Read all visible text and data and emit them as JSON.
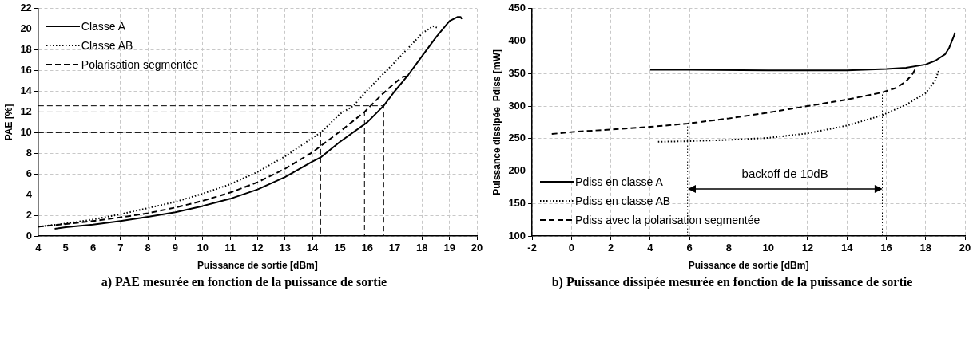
{
  "chart_data": [
    {
      "type": "line",
      "title": "a) PAE mesurée en fonction de la puissance de sortie",
      "xlabel": "Puissance de sortie [dBm]",
      "ylabel": "PAE [%]",
      "xlim": [
        4,
        20
      ],
      "xticks": [
        4,
        5,
        6,
        7,
        8,
        9,
        10,
        11,
        12,
        13,
        14,
        15,
        16,
        17,
        18,
        19,
        20
      ],
      "ylim": [
        0,
        22
      ],
      "yticks": [
        0,
        2,
        4,
        6,
        8,
        10,
        12,
        14,
        16,
        18,
        20,
        22
      ],
      "grid": true,
      "legend": "top left",
      "marker": "none",
      "series": [
        {
          "name": "Classe A",
          "color": "#000000",
          "line_style": "solid",
          "x": [
            4.6,
            5,
            6,
            7,
            8,
            9,
            10,
            11,
            12,
            13,
            14,
            14.3,
            15,
            16,
            16.6,
            17,
            17.5,
            18,
            18.5,
            19,
            19.3,
            19.4,
            19.45
          ],
          "values": [
            0.7,
            0.85,
            1.1,
            1.45,
            1.85,
            2.3,
            2.9,
            3.6,
            4.5,
            5.7,
            7.2,
            7.6,
            9.1,
            11,
            12.6,
            14,
            15.6,
            17.4,
            19.2,
            20.8,
            21.2,
            21.2,
            21
          ]
        },
        {
          "name": "Classe AB",
          "color": "#000000",
          "line_style": "dotted",
          "x": [
            4,
            5,
            6,
            7,
            8,
            9,
            10,
            11,
            12,
            13,
            14,
            14.3,
            15,
            15.5,
            16,
            17,
            17.5,
            18,
            18.4,
            18.6
          ],
          "values": [
            0.9,
            1.2,
            1.6,
            2.1,
            2.7,
            3.3,
            4.1,
            5,
            6.2,
            7.7,
            9.5,
            10,
            11.8,
            12.6,
            14.1,
            16.8,
            18.2,
            19.6,
            20.3,
            20.1
          ]
        },
        {
          "name": "Polarisation segmentée",
          "color": "#000000",
          "line_style": "dashed",
          "x": [
            4,
            5,
            6,
            7,
            8,
            9,
            10,
            11,
            12,
            13,
            14,
            15,
            15.9,
            16.5,
            17,
            17.3,
            17.6
          ],
          "values": [
            0.9,
            1.15,
            1.45,
            1.8,
            2.2,
            2.75,
            3.4,
            4.2,
            5.2,
            6.5,
            8.1,
            10.1,
            12,
            13.6,
            14.8,
            15.4,
            15.5
          ]
        },
        {
          "color": "#000000",
          "line_style": "dashed",
          "x": [
            4,
            14.3,
            14.3
          ],
          "values": [
            10,
            10,
            0
          ]
        },
        {
          "color": "#000000",
          "line_style": "dashed",
          "x": [
            4,
            15.9,
            15.9
          ],
          "values": [
            12,
            12,
            0
          ]
        },
        {
          "color": "#000000",
          "line_style": "dashed",
          "x": [
            4,
            16.6,
            16.6
          ],
          "values": [
            12.6,
            12.6,
            0
          ]
        }
      ]
    },
    {
      "type": "line",
      "title": "b) Puissance dissipée mesurée en fonction de la puissance de sortie",
      "xlabel": "Puissance de sortie [dBm]",
      "ylabel": "Puissance dissipée  Pdiss [mW]",
      "xlim": [
        -2,
        20
      ],
      "xticks": [
        -2,
        0,
        2,
        4,
        6,
        8,
        10,
        12,
        14,
        16,
        18,
        20
      ],
      "ylim": [
        100,
        450
      ],
      "yticks": [
        100,
        150,
        200,
        250,
        300,
        350,
        400,
        450
      ],
      "grid": true,
      "legend": "bottom left",
      "marker": "none",
      "annotations": [
        "backoff de 10dB"
      ],
      "series": [
        {
          "name": "Pdiss en classe A",
          "color": "#000000",
          "line_style": "solid",
          "x": [
            4,
            6,
            10,
            14,
            16,
            17,
            18,
            18.5,
            19,
            19.2,
            19.4,
            19.5
          ],
          "values": [
            356,
            356,
            355,
            355,
            357,
            359,
            364,
            370,
            380,
            390,
            405,
            413
          ]
        },
        {
          "name": "Pdiss en classe AB",
          "color": "#000000",
          "line_style": "dotted",
          "x": [
            4.4,
            6,
            8,
            10,
            12,
            14,
            15.8,
            17,
            18,
            18.5,
            18.7
          ],
          "values": [
            245,
            246,
            248,
            251,
            258,
            270,
            286,
            302,
            320,
            340,
            358
          ]
        },
        {
          "name": "Pdiss avec la polarisation segmentée",
          "color": "#000000",
          "line_style": "dashed",
          "x": [
            -1,
            0,
            2,
            4,
            5.9,
            8,
            10,
            12,
            14,
            15.8,
            16.5,
            17,
            17.3,
            17.5
          ],
          "values": [
            257,
            260,
            264,
            268,
            273,
            281,
            290,
            300,
            310,
            321,
            328,
            338,
            348,
            358
          ]
        },
        {
          "color": "#000000",
          "line_style": "dotted",
          "x": [
            5.9,
            5.9
          ],
          "values": [
            100,
            273
          ]
        },
        {
          "color": "#000000",
          "line_style": "dotted",
          "x": [
            15.8,
            15.8
          ],
          "values": [
            100,
            321
          ]
        }
      ]
    }
  ]
}
